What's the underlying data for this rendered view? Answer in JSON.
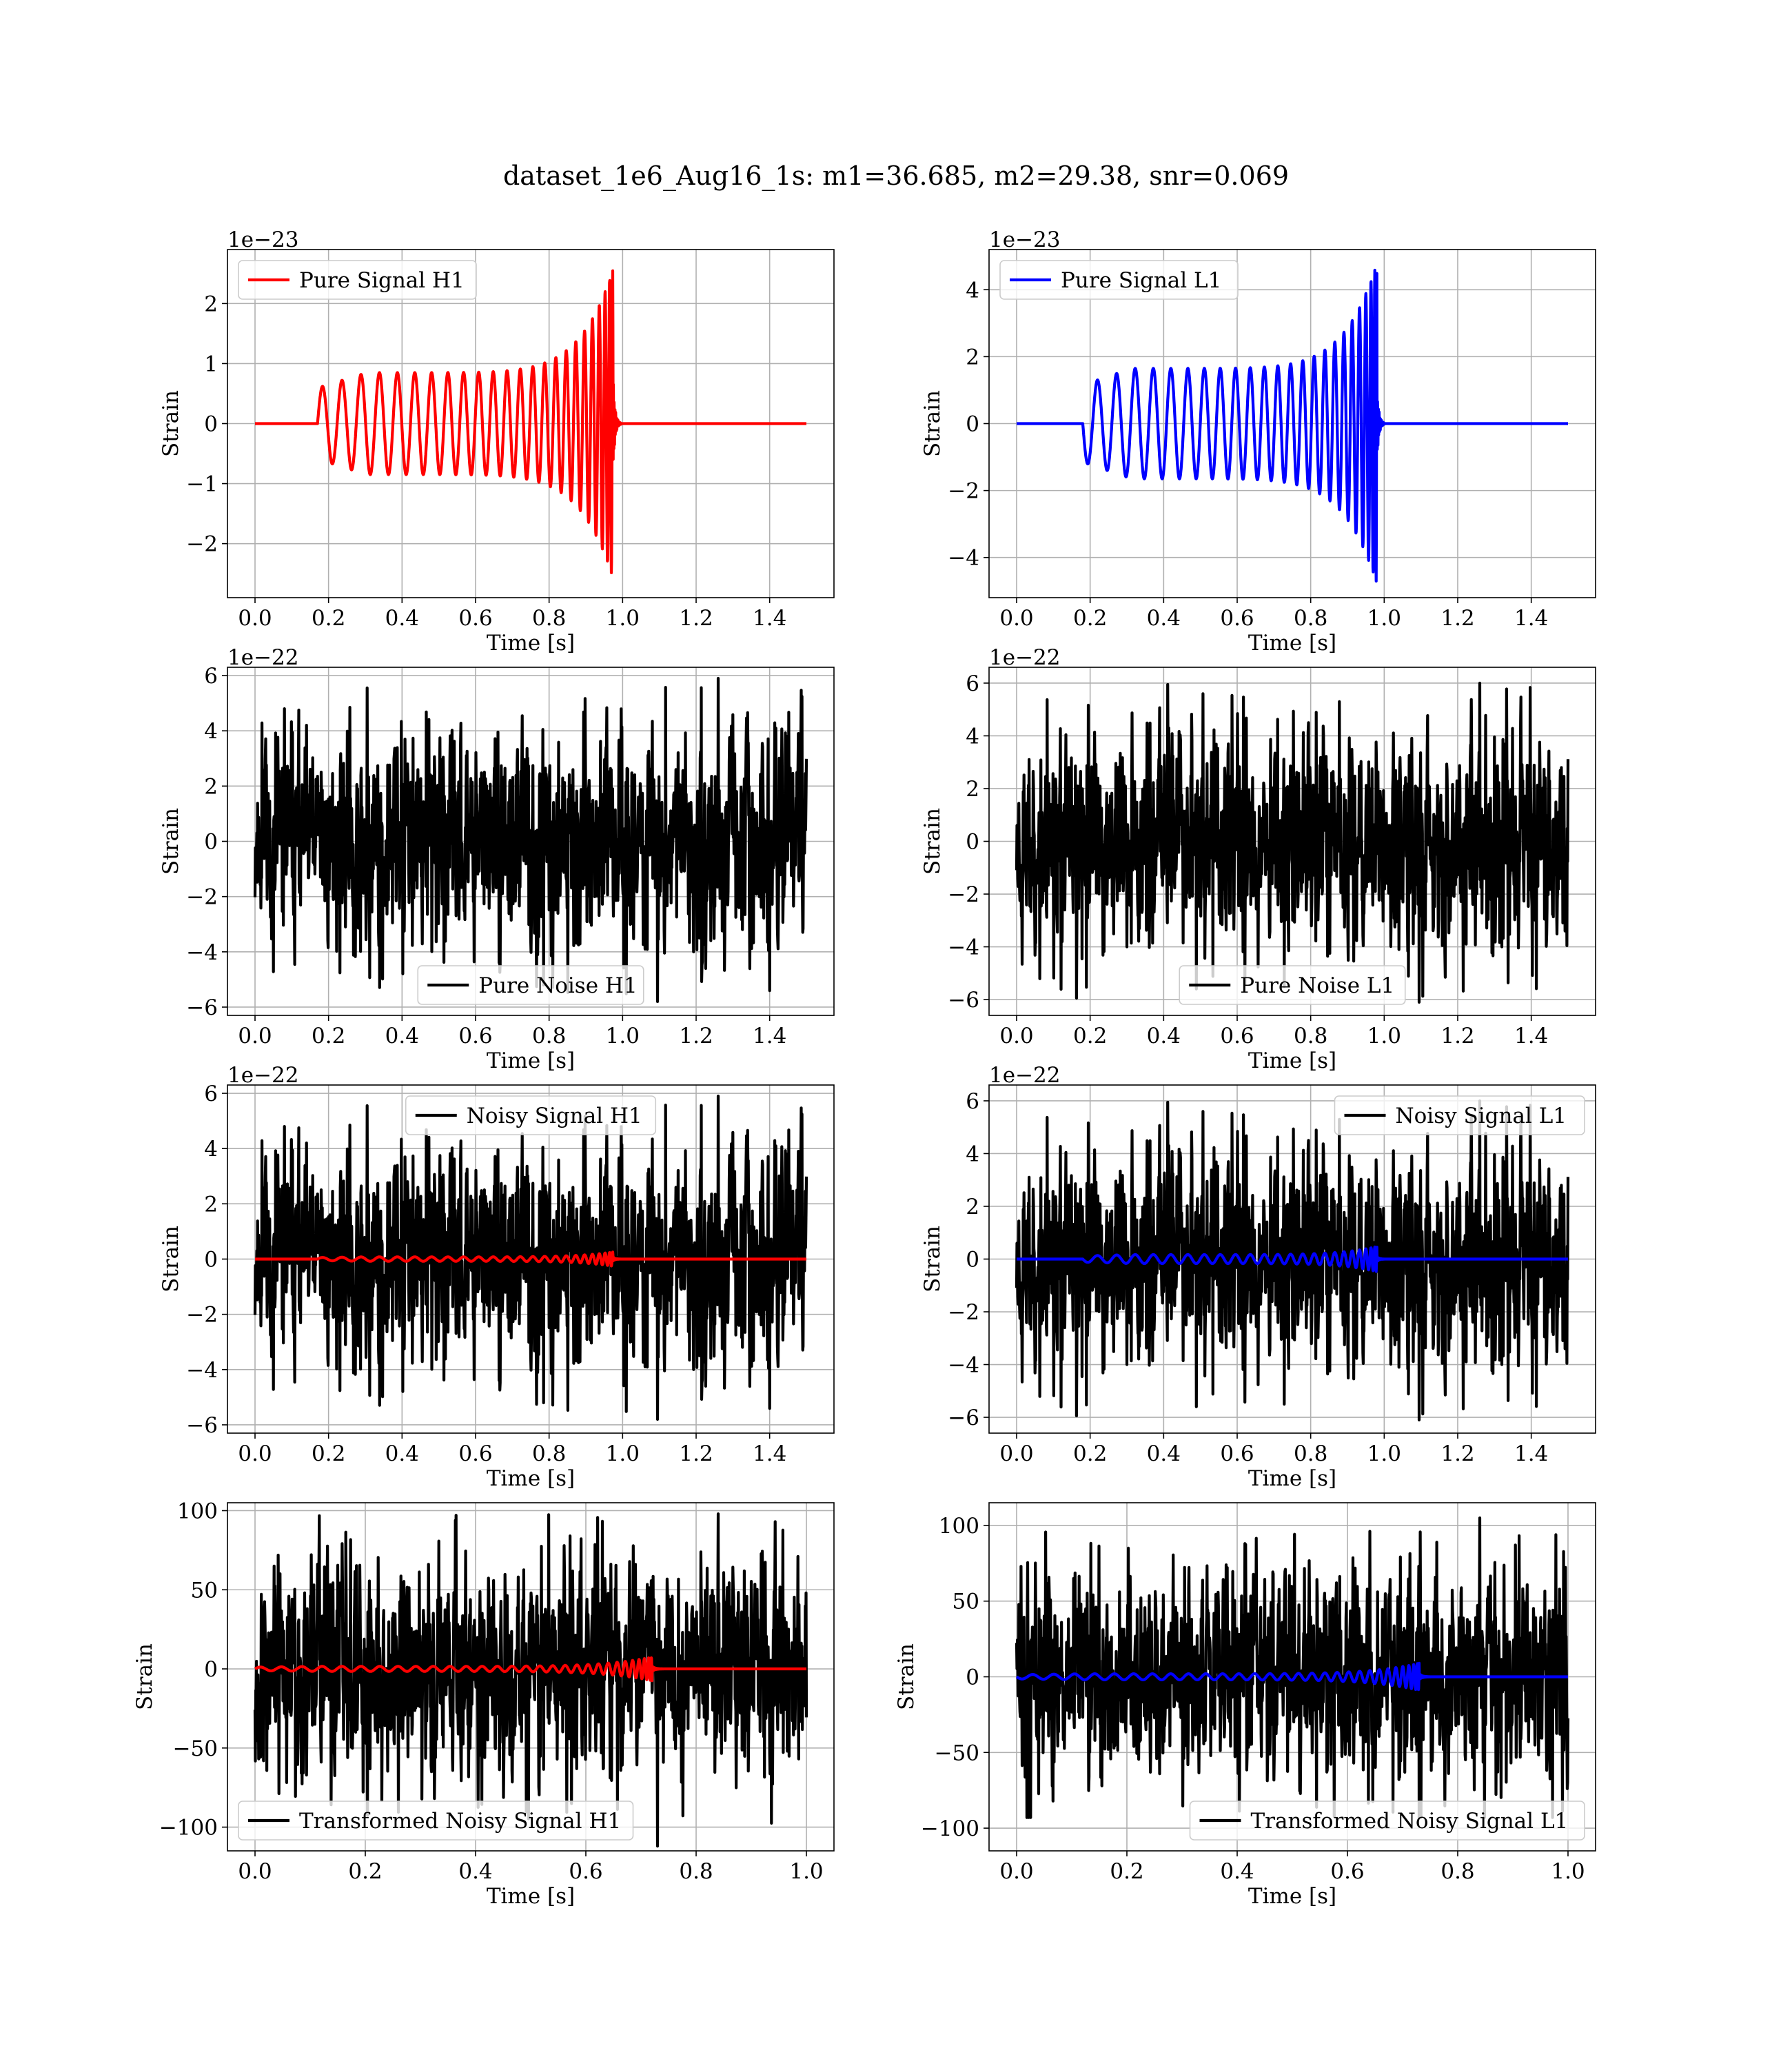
{
  "figure": {
    "title": "dataset_1e6_Aug16_1s: m1=36.685, m2=29.38, snr=0.069"
  },
  "colors": {
    "h1_signal": "#ff0000",
    "l1_signal": "#0000ff",
    "noise": "#000000",
    "grid": "#b0b0b0"
  },
  "chart_data": [
    {
      "id": "pure-signal-h1",
      "type": "line",
      "xlabel": "Time [s]",
      "ylabel": "Strain",
      "offset_text": "1e−23",
      "xlim": [
        -0.075,
        1.575
      ],
      "ylim": [
        -2.9,
        2.9
      ],
      "xticks": [
        0.0,
        0.2,
        0.4,
        0.6,
        0.8,
        1.0,
        1.2,
        1.4
      ],
      "xtick_labels": [
        "0.0",
        "0.2",
        "0.4",
        "0.6",
        "0.8",
        "1.0",
        "1.2",
        "1.4"
      ],
      "yticks": [
        -2,
        -1,
        0,
        1,
        2
      ],
      "ytick_labels": [
        "−2",
        "−1",
        "0",
        "1",
        "2"
      ],
      "grid": true,
      "legend_loc": "upper-left",
      "series": [
        {
          "name": "Pure Signal H1",
          "color": "#ff0000",
          "kind": "chirp",
          "t_start": 0.17,
          "t_merge": 0.975,
          "t_end": 1.5,
          "amp_start": 0.55,
          "amp_plateau": 0.85,
          "amp_peak": 2.6,
          "cycles": 24
        }
      ]
    },
    {
      "id": "pure-signal-l1",
      "type": "line",
      "xlabel": "Time [s]",
      "ylabel": "Strain",
      "offset_text": "1e−23",
      "xlim": [
        -0.075,
        1.575
      ],
      "ylim": [
        -5.2,
        5.2
      ],
      "xticks": [
        0.0,
        0.2,
        0.4,
        0.6,
        0.8,
        1.0,
        1.2,
        1.4
      ],
      "xtick_labels": [
        "0.0",
        "0.2",
        "0.4",
        "0.6",
        "0.8",
        "1.0",
        "1.2",
        "1.4"
      ],
      "yticks": [
        -4,
        -2,
        0,
        2,
        4
      ],
      "ytick_labels": [
        "−4",
        "−2",
        "0",
        "2",
        "4"
      ],
      "grid": true,
      "legend_loc": "upper-left",
      "series": [
        {
          "name": "Pure Signal L1",
          "color": "#0000ff",
          "kind": "chirp",
          "t_start": 0.18,
          "t_merge": 0.98,
          "t_end": 1.5,
          "amp_start": -1.0,
          "amp_plateau": 1.65,
          "amp_peak": 4.8,
          "cycles": 24
        }
      ]
    },
    {
      "id": "pure-noise-h1",
      "type": "line",
      "xlabel": "Time [s]",
      "ylabel": "Strain",
      "offset_text": "1e−22",
      "xlim": [
        -0.075,
        1.575
      ],
      "ylim": [
        -6.3,
        6.3
      ],
      "xticks": [
        0.0,
        0.2,
        0.4,
        0.6,
        0.8,
        1.0,
        1.2,
        1.4
      ],
      "xtick_labels": [
        "0.0",
        "0.2",
        "0.4",
        "0.6",
        "0.8",
        "1.0",
        "1.2",
        "1.4"
      ],
      "yticks": [
        -6,
        -4,
        -2,
        0,
        2,
        4,
        6
      ],
      "ytick_labels": [
        "−6",
        "−4",
        "−2",
        "0",
        "2",
        "4",
        "6"
      ],
      "grid": true,
      "legend_loc": "lower-center",
      "series": [
        {
          "name": "Pure Noise H1",
          "color": "#000000",
          "kind": "noise",
          "t_start": 0.0,
          "t_end": 1.5,
          "spread": 1.6,
          "peak_max": 5.9,
          "peak_min": -5.8,
          "seed": 11
        }
      ]
    },
    {
      "id": "pure-noise-l1",
      "type": "line",
      "xlabel": "Time [s]",
      "ylabel": "Strain",
      "offset_text": "1e−22",
      "xlim": [
        -0.075,
        1.575
      ],
      "ylim": [
        -6.6,
        6.6
      ],
      "xticks": [
        0.0,
        0.2,
        0.4,
        0.6,
        0.8,
        1.0,
        1.2,
        1.4
      ],
      "xtick_labels": [
        "0.0",
        "0.2",
        "0.4",
        "0.6",
        "0.8",
        "1.0",
        "1.2",
        "1.4"
      ],
      "yticks": [
        -6,
        -4,
        -2,
        0,
        2,
        4,
        6
      ],
      "ytick_labels": [
        "−6",
        "−4",
        "−2",
        "0",
        "2",
        "4",
        "6"
      ],
      "grid": true,
      "legend_loc": "lower-center",
      "series": [
        {
          "name": "Pure Noise L1",
          "color": "#000000",
          "kind": "noise",
          "t_start": 0.0,
          "t_end": 1.5,
          "spread": 1.7,
          "peak_max": 6.0,
          "peak_min": -6.1,
          "seed": 23
        }
      ]
    },
    {
      "id": "noisy-signal-h1",
      "type": "line",
      "xlabel": "Time [s]",
      "ylabel": "Strain",
      "offset_text": "1e−22",
      "xlim": [
        -0.075,
        1.575
      ],
      "ylim": [
        -6.3,
        6.3
      ],
      "xticks": [
        0.0,
        0.2,
        0.4,
        0.6,
        0.8,
        1.0,
        1.2,
        1.4
      ],
      "xtick_labels": [
        "0.0",
        "0.2",
        "0.4",
        "0.6",
        "0.8",
        "1.0",
        "1.2",
        "1.4"
      ],
      "yticks": [
        -6,
        -4,
        -2,
        0,
        2,
        4,
        6
      ],
      "ytick_labels": [
        "−6",
        "−4",
        "−2",
        "0",
        "2",
        "4",
        "6"
      ],
      "grid": true,
      "legend_loc": "upper-center",
      "series": [
        {
          "name": "Noisy Signal H1",
          "color": "#000000",
          "kind": "noise",
          "t_start": 0.0,
          "t_end": 1.5,
          "spread": 1.6,
          "peak_max": 5.9,
          "peak_min": -5.8,
          "seed": 11
        },
        {
          "color": "#ff0000",
          "kind": "chirp",
          "t_start": 0.17,
          "t_merge": 0.975,
          "t_end": 1.5,
          "amp_start": 0.05,
          "amp_plateau": 0.08,
          "amp_peak": 0.26,
          "cycles": 24
        }
      ]
    },
    {
      "id": "noisy-signal-l1",
      "type": "line",
      "xlabel": "Time [s]",
      "ylabel": "Strain",
      "offset_text": "1e−22",
      "xlim": [
        -0.075,
        1.575
      ],
      "ylim": [
        -6.6,
        6.6
      ],
      "xticks": [
        0.0,
        0.2,
        0.4,
        0.6,
        0.8,
        1.0,
        1.2,
        1.4
      ],
      "xtick_labels": [
        "0.0",
        "0.2",
        "0.4",
        "0.6",
        "0.8",
        "1.0",
        "1.2",
        "1.4"
      ],
      "yticks": [
        -6,
        -4,
        -2,
        0,
        2,
        4,
        6
      ],
      "ytick_labels": [
        "−6",
        "−4",
        "−2",
        "0",
        "2",
        "4",
        "6"
      ],
      "grid": true,
      "legend_loc": "upper-right",
      "series": [
        {
          "name": "Noisy Signal L1",
          "color": "#000000",
          "kind": "noise",
          "t_start": 0.0,
          "t_end": 1.5,
          "spread": 1.7,
          "peak_max": 6.0,
          "peak_min": -6.1,
          "seed": 23
        },
        {
          "color": "#0000ff",
          "kind": "chirp",
          "t_start": 0.18,
          "t_merge": 0.98,
          "t_end": 1.5,
          "amp_start": -0.1,
          "amp_plateau": 0.17,
          "amp_peak": 0.48,
          "cycles": 24
        }
      ]
    },
    {
      "id": "transformed-noisy-signal-h1",
      "type": "line",
      "xlabel": "Time [s]",
      "ylabel": "Strain",
      "offset_text": "",
      "xlim": [
        -0.05,
        1.05
      ],
      "ylim": [
        -115,
        105
      ],
      "xticks": [
        0.0,
        0.2,
        0.4,
        0.6,
        0.8,
        1.0
      ],
      "xtick_labels": [
        "0.0",
        "0.2",
        "0.4",
        "0.6",
        "0.8",
        "1.0"
      ],
      "yticks": [
        -100,
        -50,
        0,
        50,
        100
      ],
      "ytick_labels": [
        "−100",
        "−50",
        "0",
        "50",
        "100"
      ],
      "grid": true,
      "legend_loc": "lower-left",
      "series": [
        {
          "name": "Transformed Noisy Signal H1",
          "color": "#000000",
          "kind": "noise",
          "t_start": 0.0,
          "t_end": 1.0,
          "spread": 28,
          "peak_max": 98,
          "peak_min": -112,
          "seed": 37
        },
        {
          "color": "#ff0000",
          "kind": "chirp",
          "t_start": 0.0,
          "t_merge": 0.72,
          "t_end": 1.0,
          "amp_start": 0.8,
          "amp_plateau": 1.6,
          "amp_peak": 7.5,
          "cycles": 30
        }
      ]
    },
    {
      "id": "transformed-noisy-signal-l1",
      "type": "line",
      "xlabel": "Time [s]",
      "ylabel": "Strain",
      "offset_text": "",
      "xlim": [
        -0.05,
        1.05
      ],
      "ylim": [
        -115,
        115
      ],
      "xticks": [
        0.0,
        0.2,
        0.4,
        0.6,
        0.8,
        1.0
      ],
      "xtick_labels": [
        "0.0",
        "0.2",
        "0.4",
        "0.6",
        "0.8",
        "1.0"
      ],
      "yticks": [
        -100,
        -50,
        0,
        50,
        100
      ],
      "ytick_labels": [
        "−100",
        "−50",
        "0",
        "50",
        "100"
      ],
      "grid": true,
      "legend_loc": "lower-right",
      "series": [
        {
          "name": "Transformed Noisy Signal L1",
          "color": "#000000",
          "kind": "noise",
          "t_start": 0.0,
          "t_end": 1.0,
          "spread": 28,
          "peak_max": 105,
          "peak_min": -93,
          "seed": 51
        },
        {
          "color": "#0000ff",
          "kind": "chirp",
          "t_start": 0.0,
          "t_merge": 0.73,
          "t_end": 1.0,
          "amp_start": -1.0,
          "amp_plateau": 2.0,
          "amp_peak": 9.0,
          "cycles": 30
        }
      ]
    }
  ]
}
